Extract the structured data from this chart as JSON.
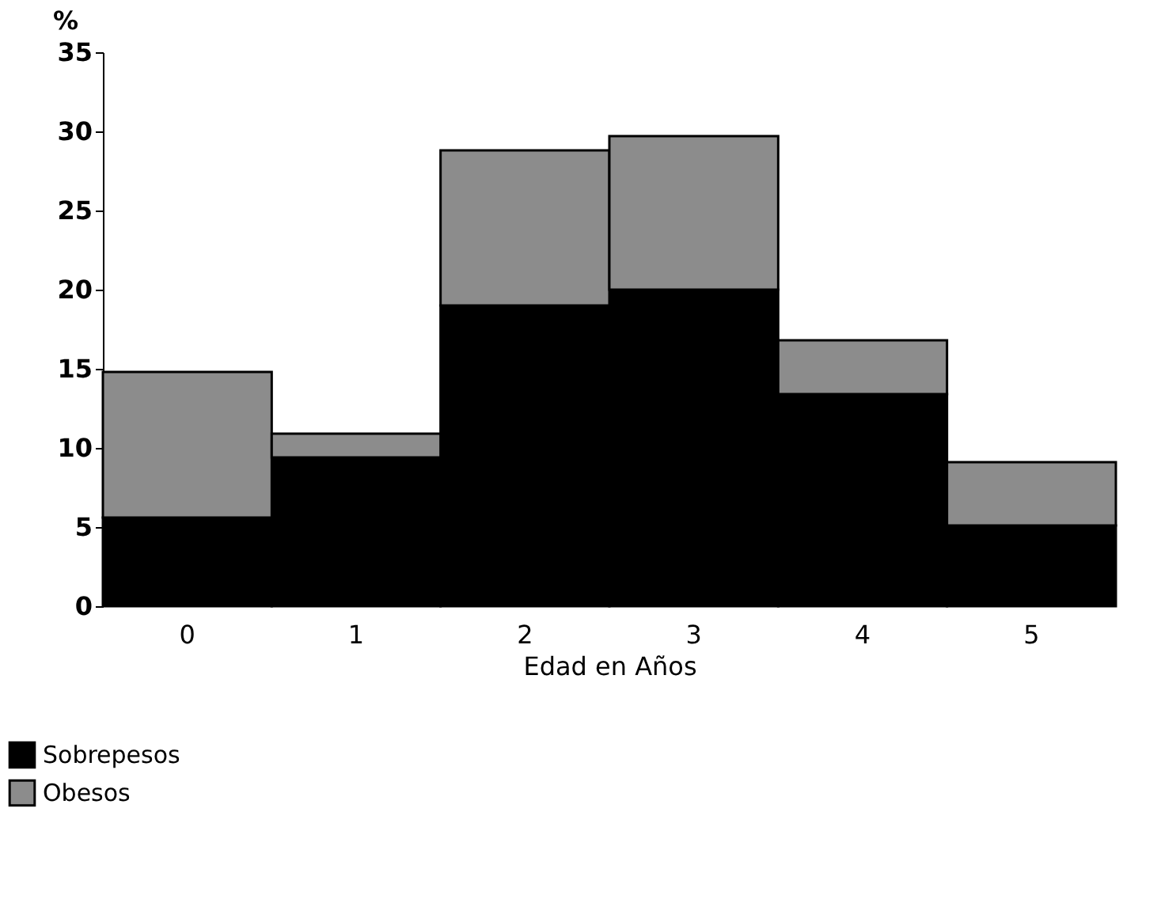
{
  "chart_data": {
    "type": "bar",
    "stacked": true,
    "ylabel": "%",
    "xlabel": "Edad en Años",
    "categories": [
      "0",
      "1",
      "2",
      "3",
      "4",
      "5"
    ],
    "series": [
      {
        "name": "Sobrepesos",
        "color": "#000000",
        "values": [
          5.6,
          9.4,
          19.0,
          20.0,
          13.4,
          5.1
        ]
      },
      {
        "name": "Obesos",
        "color": "#8c8c8c",
        "values": [
          9.2,
          1.5,
          9.8,
          9.7,
          3.4,
          4.0
        ]
      }
    ],
    "ylim": [
      0,
      35
    ],
    "yticks": [
      0,
      5,
      10,
      15,
      20,
      25,
      30,
      35
    ],
    "grid": false,
    "legend": "bottom left"
  }
}
